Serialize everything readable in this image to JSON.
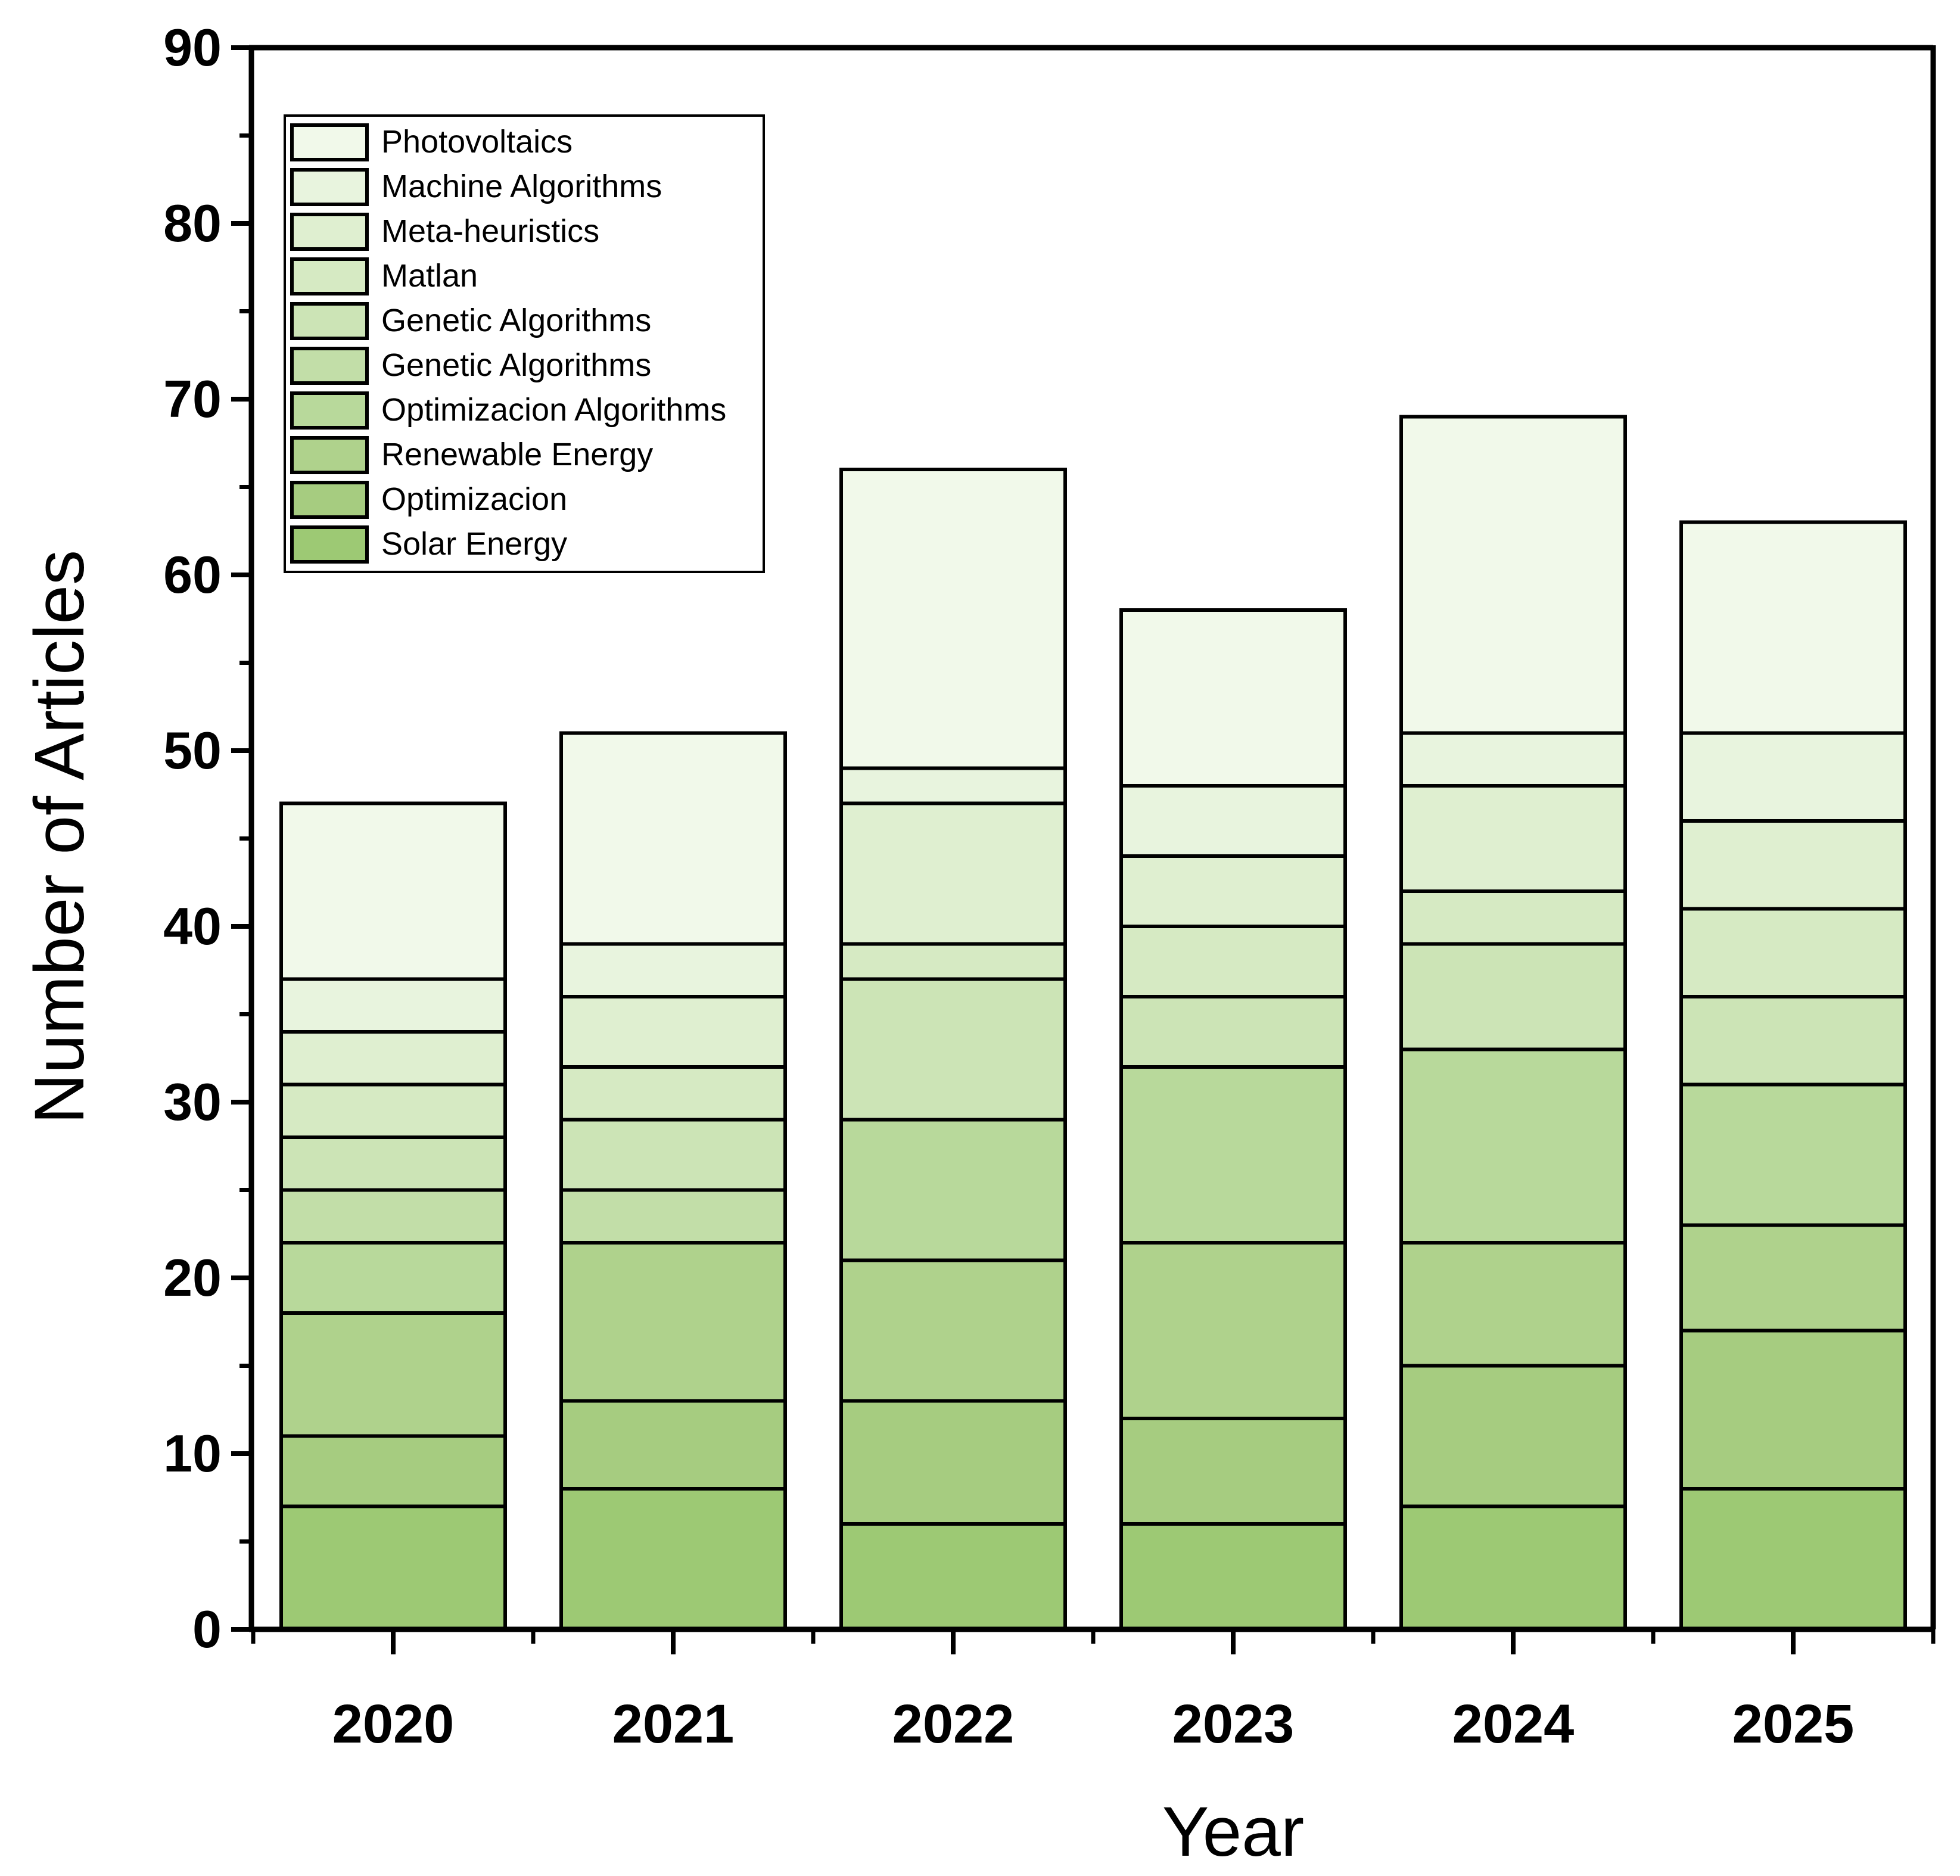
{
  "chart_data": {
    "type": "bar",
    "stacked": true,
    "title": "",
    "xlabel": "Year",
    "ylabel": "Number of Articles",
    "ylim": [
      0,
      90
    ],
    "yticks": [
      0,
      10,
      20,
      30,
      40,
      50,
      60,
      70,
      80,
      90
    ],
    "categories": [
      "2020",
      "2021",
      "2022",
      "2023",
      "2024",
      "2025"
    ],
    "legend_position": "top-left",
    "grid": false,
    "series": [
      {
        "name": "Solar Energy",
        "color": "#9dc974",
        "values": [
          7,
          8,
          6,
          6,
          7,
          8
        ]
      },
      {
        "name": "Optimizacion",
        "color": "#a6cc80",
        "values": [
          4,
          5,
          7,
          6,
          8,
          9
        ]
      },
      {
        "name": "Renewable Energy",
        "color": "#afd28c",
        "values": [
          7,
          9,
          8,
          10,
          7,
          6
        ]
      },
      {
        "name": "Optimizacion Algorithms",
        "color": "#b8d99b",
        "values": [
          4,
          0,
          8,
          10,
          11,
          8
        ]
      },
      {
        "name": "Genetic Algorithms",
        "color": "#c2dea8",
        "values": [
          3,
          3,
          0,
          0,
          0,
          0
        ]
      },
      {
        "name": "Genetic Algorithms",
        "color": "#cce4b6",
        "values": [
          3,
          4,
          8,
          4,
          6,
          5
        ]
      },
      {
        "name": "Matlan",
        "color": "#d6eac3",
        "values": [
          3,
          3,
          2,
          4,
          3,
          5
        ]
      },
      {
        "name": "Meta-heuristics",
        "color": "#dfefd0",
        "values": [
          3,
          4,
          8,
          4,
          6,
          5
        ]
      },
      {
        "name": "Machine Algorithms",
        "color": "#e8f4de",
        "values": [
          3,
          3,
          2,
          4,
          3,
          5
        ]
      },
      {
        "name": "Photovoltaics",
        "color": "#f1f9ea",
        "values": [
          10,
          12,
          17,
          10,
          18,
          12
        ]
      }
    ]
  }
}
